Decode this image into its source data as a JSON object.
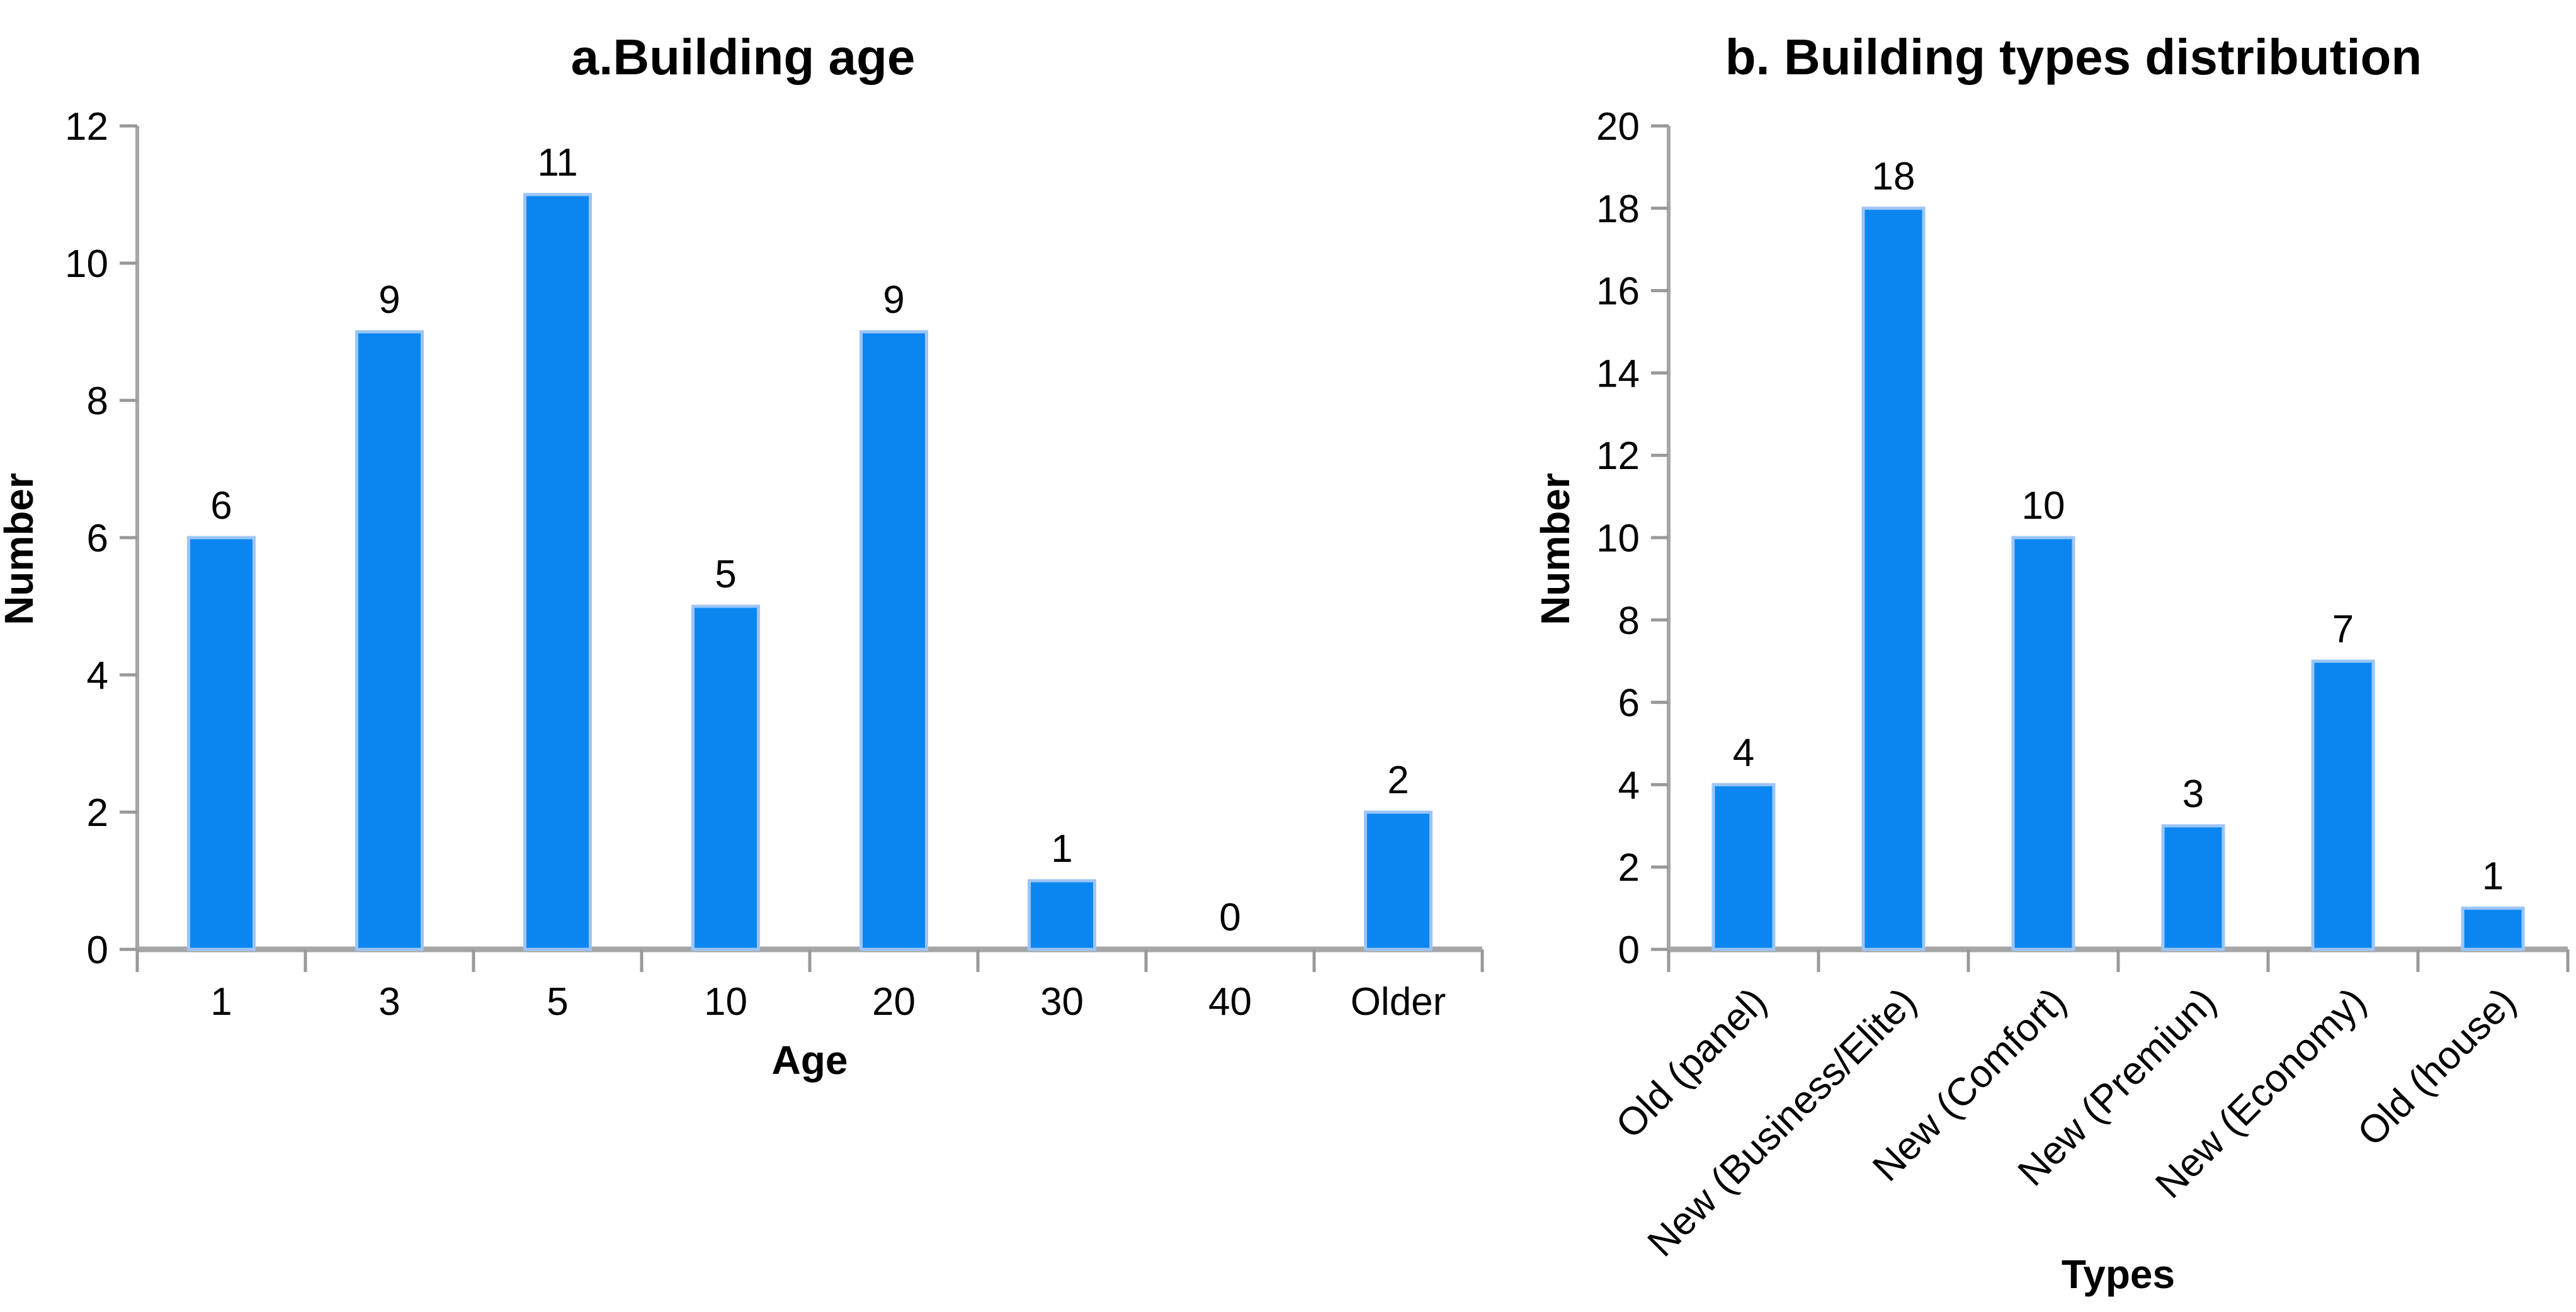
{
  "figure": {
    "background": "#FFFFFF",
    "text_color": "#000000"
  },
  "chart_data": [
    {
      "type": "bar",
      "title": "a.Building age",
      "xlabel": "Age",
      "ylabel": "Number",
      "categories": [
        "1",
        "3",
        "5",
        "10",
        "20",
        "30",
        "40",
        "Older"
      ],
      "values": [
        6,
        9,
        11,
        5,
        9,
        1,
        0,
        2
      ],
      "ylim": [
        0,
        12
      ],
      "yticks": [
        0,
        2,
        4,
        6,
        8,
        10,
        12
      ],
      "grid": false,
      "legend": null,
      "x_label_rotation": 0,
      "bar_color": "#0B86F0",
      "bar_edge_color": "#9CC5F7",
      "axis_color": "#A6A6A6",
      "tick_color": "#999999"
    },
    {
      "type": "bar",
      "title": "b. Building types distribution",
      "xlabel": "Types",
      "ylabel": "Number",
      "categories": [
        "Old (panel)",
        "New (Business/Elite)",
        "New (Comfort)",
        "New (Premiun)",
        "New (Economy)",
        "Old (house)"
      ],
      "values": [
        4,
        18,
        10,
        3,
        7,
        1
      ],
      "ylim": [
        0,
        20
      ],
      "yticks": [
        0,
        2,
        4,
        6,
        8,
        10,
        12,
        14,
        16,
        18,
        20
      ],
      "grid": false,
      "legend": null,
      "x_label_rotation": 45,
      "bar_color": "#0B86F0",
      "bar_edge_color": "#9CC5F7",
      "axis_color": "#A6A6A6",
      "tick_color": "#999999"
    }
  ]
}
